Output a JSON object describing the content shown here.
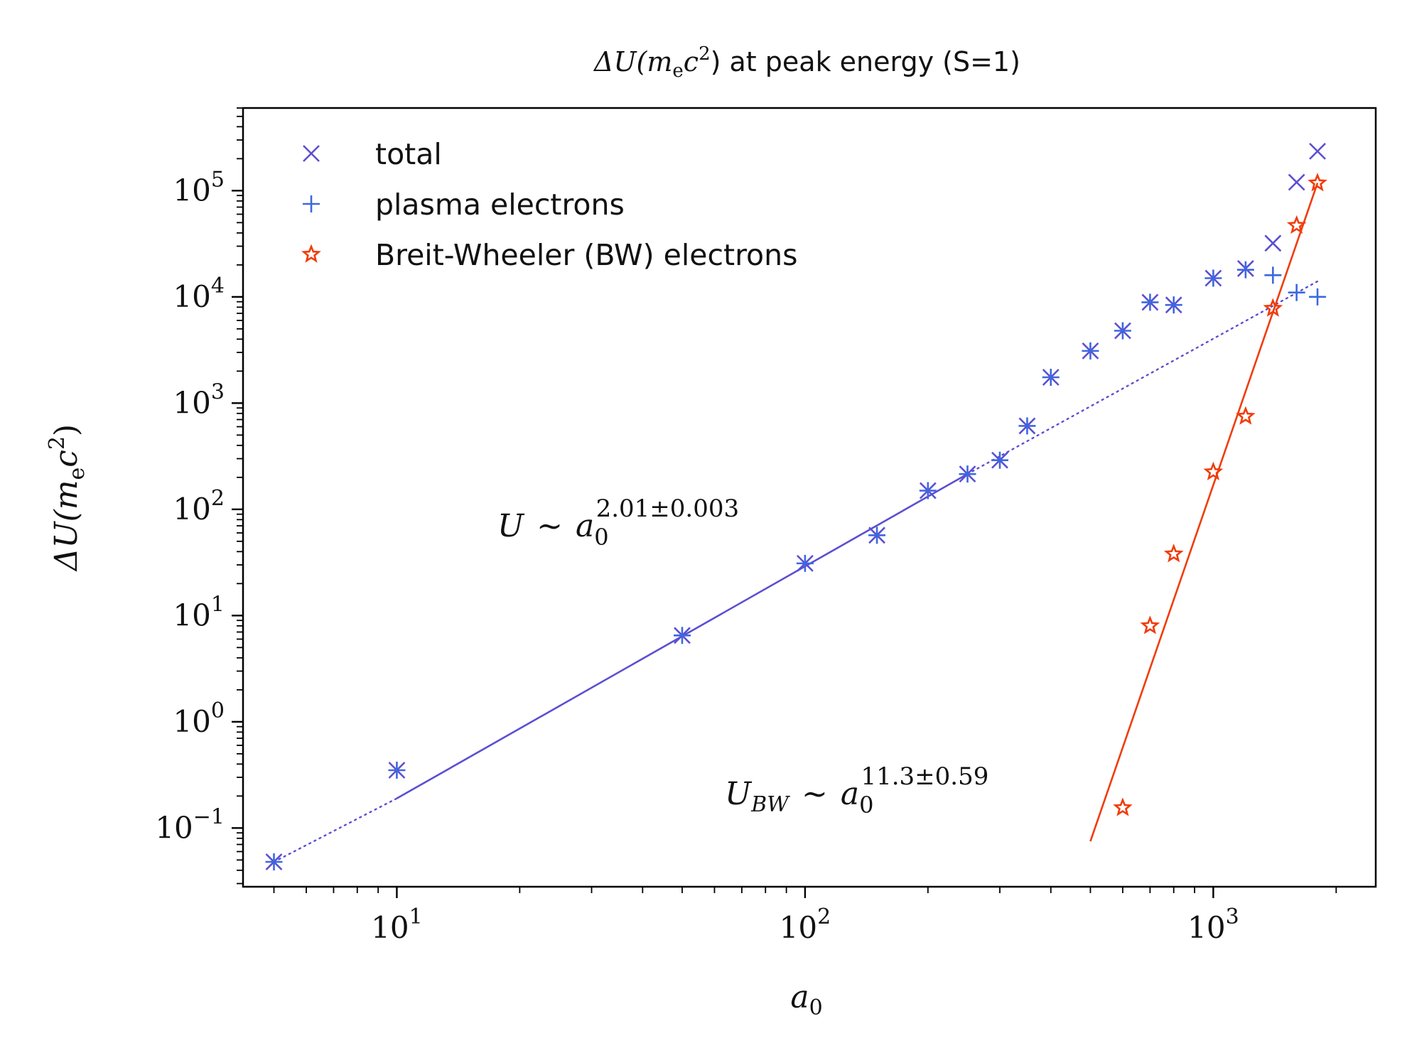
{
  "chart_data": {
    "type": "scatter",
    "title": {
      "pre": "ΔU(m",
      "sub": "e",
      "mid": "c",
      "sup": "2",
      "post": ") at peak energy (S=1)"
    },
    "xlabel": {
      "main": "a",
      "sub": "0"
    },
    "ylabel": {
      "pre": "ΔU(m",
      "sub": "e",
      "mid": "c",
      "sup": "2",
      "post": ")"
    },
    "x_scale": "log",
    "y_scale": "log",
    "xlim": [
      4.2,
      2500
    ],
    "ylim": [
      0.028,
      600000
    ],
    "x_ticks": [
      {
        "value": 10,
        "base": "10",
        "exp": "1"
      },
      {
        "value": 100,
        "base": "10",
        "exp": "2"
      },
      {
        "value": 1000,
        "base": "10",
        "exp": "3"
      }
    ],
    "y_ticks": [
      {
        "value": 0.1,
        "base": "10",
        "exp": "−1"
      },
      {
        "value": 1,
        "base": "10",
        "exp": "0"
      },
      {
        "value": 10,
        "base": "10",
        "exp": "1"
      },
      {
        "value": 100,
        "base": "10",
        "exp": "2"
      },
      {
        "value": 1000,
        "base": "10",
        "exp": "3"
      },
      {
        "value": 10000,
        "base": "10",
        "exp": "4"
      },
      {
        "value": 100000,
        "base": "10",
        "exp": "5"
      }
    ],
    "legend_position": "top-left",
    "grid": false,
    "series": [
      {
        "name": "total",
        "marker": "x",
        "color": "#5b4fd1",
        "points": [
          [
            5,
            0.048
          ],
          [
            10,
            0.35
          ],
          [
            50,
            6.5
          ],
          [
            100,
            31
          ],
          [
            150,
            57
          ],
          [
            200,
            150
          ],
          [
            250,
            215
          ],
          [
            300,
            290
          ],
          [
            350,
            610
          ],
          [
            400,
            1750
          ],
          [
            500,
            3100
          ],
          [
            600,
            4800
          ],
          [
            700,
            8900
          ],
          [
            800,
            8400
          ],
          [
            1000,
            15000
          ],
          [
            1200,
            18500
          ],
          [
            1400,
            32000
          ],
          [
            1600,
            120000
          ],
          [
            1800,
            235000
          ]
        ]
      },
      {
        "name": "plasma electrons",
        "marker": "+",
        "color": "#3b68e0",
        "points": [
          [
            5,
            0.048
          ],
          [
            10,
            0.35
          ],
          [
            50,
            6.5
          ],
          [
            100,
            31
          ],
          [
            150,
            57
          ],
          [
            200,
            150
          ],
          [
            250,
            215
          ],
          [
            300,
            290
          ],
          [
            350,
            610
          ],
          [
            400,
            1750
          ],
          [
            500,
            3100
          ],
          [
            600,
            4800
          ],
          [
            700,
            8900
          ],
          [
            800,
            8400
          ],
          [
            1000,
            15000
          ],
          [
            1200,
            18000
          ],
          [
            1400,
            16000
          ],
          [
            1600,
            11000
          ],
          [
            1800,
            10000
          ]
        ]
      },
      {
        "name": "Breit-Wheeler (BW) electrons",
        "marker": "star",
        "color": "#f03c0a",
        "points": [
          [
            600,
            0.155
          ],
          [
            700,
            8
          ],
          [
            800,
            38
          ],
          [
            1000,
            225
          ],
          [
            1200,
            750
          ],
          [
            1400,
            7800
          ],
          [
            1600,
            47000
          ],
          [
            1800,
            118000
          ]
        ]
      }
    ],
    "fits": [
      {
        "name": "plasma fit",
        "color": "#5b4fd1",
        "exponent": 2.01,
        "solid_range": [
          10,
          250
        ],
        "dotted_ranges": [
          [
            5,
            10
          ],
          [
            250,
            1800
          ]
        ],
        "points": [
          [
            5,
            0.048
          ],
          [
            10,
            0.19
          ],
          [
            250,
            215
          ],
          [
            1800,
            14000
          ]
        ]
      },
      {
        "name": "BW fit",
        "color": "#f03c0a",
        "exponent": 11.3,
        "solid_range": [
          500,
          1800
        ],
        "points": [
          [
            500,
            0.075
          ],
          [
            1800,
            118000
          ]
        ]
      }
    ],
    "annotations": [
      {
        "id": "plasma",
        "lhs": "U",
        "rel": "∼",
        "base": "a",
        "sub": "0",
        "sup": "2.01±0.003"
      },
      {
        "id": "bw",
        "lhs": "U",
        "lhs_sub": "BW",
        "rel": "∼",
        "base": "a",
        "sub": "0",
        "sup": "11.3±0.59"
      }
    ]
  }
}
